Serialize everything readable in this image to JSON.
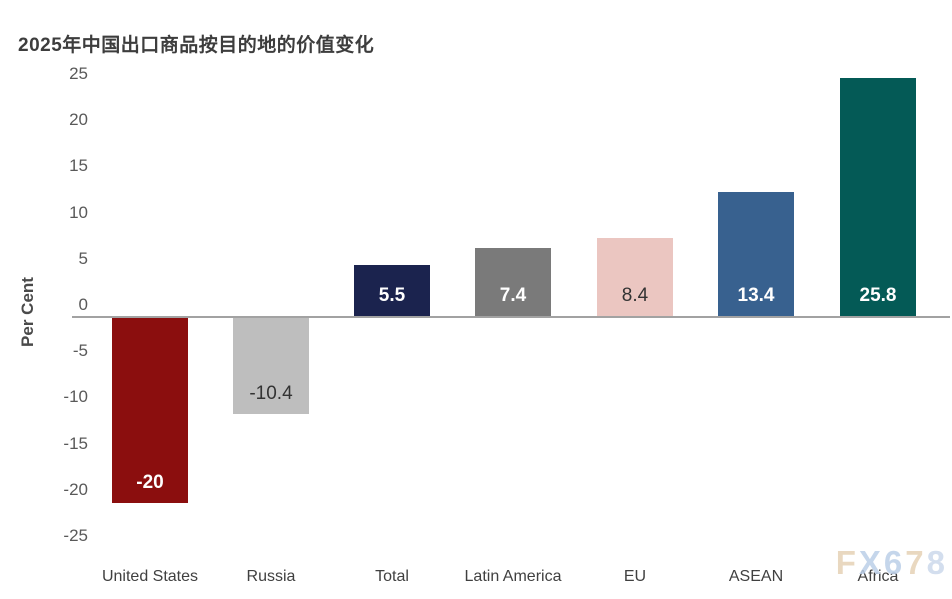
{
  "title": "2025年中国出口商品按目的地的价值变化",
  "watermark": {
    "text": "FX678",
    "letters": [
      {
        "char": "F",
        "color": "#e6d2b6"
      },
      {
        "char": "X",
        "color": "#bccfe8"
      },
      {
        "char": "6",
        "color": "#bccfe8"
      },
      {
        "char": "7",
        "color": "#e6d2b6"
      },
      {
        "char": "8",
        "color": "#ccd9ec"
      }
    ]
  },
  "chart_data": {
    "type": "bar",
    "title": "2025年中国出口商品按目的地的价值变化",
    "xlabel": "",
    "ylabel": "Per Cent",
    "ylim": [
      -25,
      25
    ],
    "ytick_step": 5,
    "yticks": [
      25,
      20,
      15,
      10,
      5,
      0,
      -5,
      -10,
      -15,
      -20,
      -25
    ],
    "grid": false,
    "legend": false,
    "categories": [
      "United States",
      "Russia",
      "Total",
      "Latin America",
      "EU",
      "ASEAN",
      "Africa"
    ],
    "values": [
      -20,
      -10.4,
      5.5,
      7.4,
      8.4,
      13.4,
      25.8
    ],
    "value_labels": [
      "-20",
      "-10.4",
      "5.5",
      "7.4",
      "8.4",
      "13.4",
      "25.8"
    ],
    "bar_colors": [
      "#8B0E0E",
      "#BEBEBE",
      "#1B234E",
      "#7A7A7A",
      "#EBC6C1",
      "#38618F",
      "#045A56"
    ],
    "value_label_colors": [
      "#ffffff",
      "#333333",
      "#ffffff",
      "#ffffff",
      "#333333",
      "#ffffff",
      "#ffffff"
    ],
    "zero_line_color": "#a2a2a2"
  }
}
